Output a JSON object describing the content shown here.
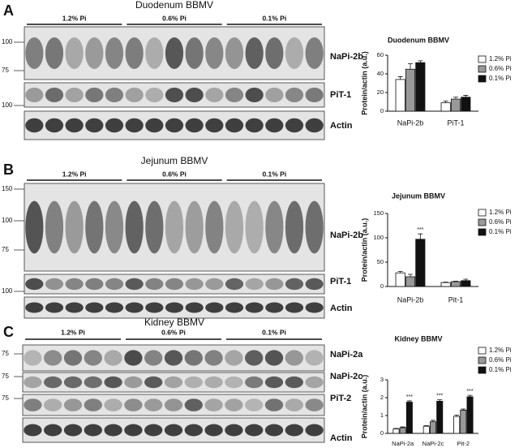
{
  "panels": [
    {
      "letter": "A",
      "title": "Duodenum BBMV",
      "groups": [
        "1.2% Pi",
        "0.6% Pi",
        "0.1% Pi"
      ],
      "blots": [
        {
          "label": "NaPi-2b",
          "markers": [
            "100",
            "75"
          ]
        },
        {
          "label": "PiT-1",
          "markers": [
            "100"
          ]
        },
        {
          "label": "Actin",
          "markers": []
        }
      ]
    },
    {
      "letter": "B",
      "title": "Jejunum BBMV",
      "groups": [
        "1.2% Pi",
        "0.6% Pi",
        "0.1% Pi"
      ],
      "blots": [
        {
          "label": "NaPi-2b",
          "markers": [
            "150",
            "100",
            "75"
          ]
        },
        {
          "label": "PiT-1",
          "markers": [
            "100"
          ]
        },
        {
          "label": "Actin",
          "markers": []
        }
      ]
    },
    {
      "letter": "C",
      "title": "Kidney BBMV",
      "groups": [
        "1.2% Pi",
        "0.6% Pi",
        "0.1% Pi"
      ],
      "blots": [
        {
          "label": "NaPi-2a",
          "markers": [
            "75"
          ]
        },
        {
          "label": "NaPi-2c",
          "markers": [
            "75"
          ]
        },
        {
          "label": "PiT-2",
          "markers": [
            "75"
          ]
        },
        {
          "label": "Actin",
          "markers": []
        }
      ]
    }
  ],
  "chart_data": [
    {
      "type": "bar",
      "title": "Duodenum BBMV",
      "y_label": "Protein/actin (a.u.)",
      "categories": [
        "NaPi-2b",
        "PiT-1"
      ],
      "ylim": [
        0,
        60
      ],
      "yticks": [
        0,
        20,
        40,
        60
      ],
      "series": [
        {
          "name": "1.2% Pi",
          "color": "#ffffff",
          "values": [
            34,
            9
          ],
          "errors": [
            3,
            2
          ]
        },
        {
          "name": "0.6% Pi",
          "color": "#999999",
          "values": [
            45,
            13
          ],
          "errors": [
            6,
            2
          ]
        },
        {
          "name": "0.1% Pi",
          "color": "#111111",
          "values": [
            52,
            15
          ],
          "errors": [
            2,
            2
          ]
        }
      ]
    },
    {
      "type": "bar",
      "title": "Jejunum BBMV",
      "y_label": "Protein/actin (a.u.)",
      "categories": [
        "NaPi-2b",
        "Pit-1"
      ],
      "ylim": [
        0,
        150
      ],
      "yticks": [
        0,
        50,
        100,
        150
      ],
      "series": [
        {
          "name": "1.2% Pi",
          "color": "#ffffff",
          "values": [
            28,
            8
          ],
          "errors": [
            3,
            1
          ]
        },
        {
          "name": "0.6% Pi",
          "color": "#999999",
          "values": [
            20,
            10
          ],
          "errors": [
            5,
            1
          ]
        },
        {
          "name": "0.1% Pi",
          "color": "#111111",
          "values": [
            97,
            12
          ],
          "errors": [
            11,
            3
          ],
          "significance": [
            "***",
            null
          ]
        }
      ]
    },
    {
      "type": "bar",
      "title": "Kidney BBMV",
      "y_label": "Protein/actin (a.u.)",
      "categories": [
        "NaPi-2a",
        "NaPi-2c",
        "Pit-2"
      ],
      "ylim": [
        0,
        3
      ],
      "yticks": [
        0,
        1,
        2,
        3
      ],
      "series": [
        {
          "name": "1.2% Pi",
          "color": "#ffffff",
          "values": [
            0.25,
            0.4,
            0.95
          ],
          "errors": [
            0.03,
            0.03,
            0.08
          ]
        },
        {
          "name": "0.6% Pi",
          "color": "#999999",
          "values": [
            0.32,
            0.65,
            1.3
          ],
          "errors": [
            0.04,
            0.08,
            0.06
          ]
        },
        {
          "name": "0.1% Pi",
          "color": "#111111",
          "values": [
            1.75,
            1.8,
            2.05
          ],
          "errors": [
            0.07,
            0.08,
            0.08
          ],
          "significance": [
            "***",
            "***",
            "***"
          ]
        }
      ]
    }
  ]
}
